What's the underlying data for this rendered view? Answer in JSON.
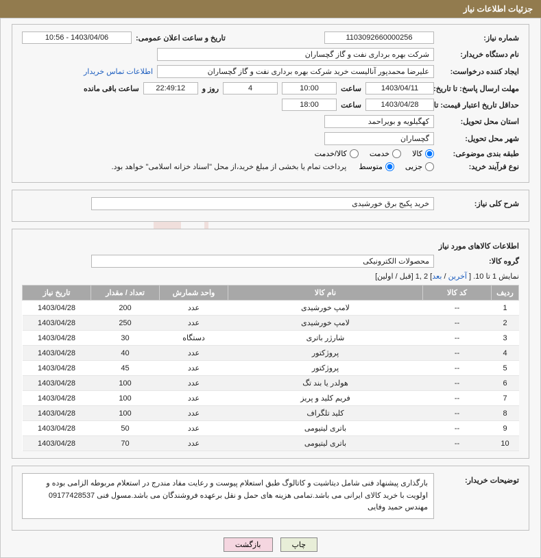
{
  "header": {
    "title": "جزئیات اطلاعات نیاز"
  },
  "watermark": {
    "text": "AriaTender.net"
  },
  "info": {
    "need_no_label": "شماره نیاز:",
    "need_no": "1103092660000256",
    "announce_label": "تاریخ و ساعت اعلان عمومی:",
    "announce": "1403/04/06 - 10:56",
    "buyer_org_label": "نام دستگاه خریدار:",
    "buyer_org": "شرکت بهره برداری نفت و گاز گچساران",
    "requester_label": "ایجاد کننده درخواست:",
    "requester": "علیرضا محمدپور آنالیست خرید شرکت بهره برداری نفت و گاز گچساران",
    "contact_link": "اطلاعات تماس خریدار",
    "deadline_label": "مهلت ارسال پاسخ: تا تاریخ:",
    "deadline_date": "1403/04/11",
    "time_label": "ساعت",
    "deadline_time": "10:00",
    "days_remaining": "4",
    "days_word": "روز و",
    "countdown": "22:49:12",
    "remaining_word": "ساعت باقی مانده",
    "validity_label": "حداقل تاریخ اعتبار قیمت: تا تاریخ:",
    "validity_date": "1403/04/28",
    "validity_time": "18:00",
    "province_label": "استان محل تحویل:",
    "province": "کهگیلویه و بویراحمد",
    "city_label": "شهر محل تحویل:",
    "city": "گچساران",
    "category_label": "طبقه بندی موضوعی:",
    "cat_goods": "کالا",
    "cat_service": "خدمت",
    "cat_both": "کالا/خدمت",
    "process_label": "نوع فرآیند خرید:",
    "proc_partial": "جزیی",
    "proc_medium": "متوسط",
    "payment_note": "پرداخت تمام یا بخشی از مبلغ خرید،از محل \"اسناد خزانه اسلامی\" خواهد بود."
  },
  "summary": {
    "title_label": "شرح کلی نیاز:",
    "title": "خرید پکیج برق خورشیدی"
  },
  "items": {
    "section_title": "اطلاعات کالاهای مورد نیاز",
    "group_label": "گروه کالا:",
    "group": "محصولات الکترونیکی",
    "pager_text": "نمایش 1 تا 10. [ ",
    "pager_last": "آخرین",
    "pager_sep1": " / ",
    "pager_next": "بعد",
    "pager_mid": "] 2 ,1 ",
    "pager_prevfirst": "[قبل / اولین]",
    "columns": [
      "ردیف",
      "کد کالا",
      "نام کالا",
      "واحد شمارش",
      "تعداد / مقدار",
      "تاریخ نیاز"
    ],
    "col_widths": [
      "40px",
      "100px",
      "auto",
      "100px",
      "100px",
      "100px"
    ],
    "rows": [
      [
        "1",
        "--",
        "لامپ خورشیدی",
        "عدد",
        "200",
        "1403/04/28"
      ],
      [
        "2",
        "--",
        "لامپ خورشیدی",
        "عدد",
        "250",
        "1403/04/28"
      ],
      [
        "3",
        "--",
        "شارژر باتری",
        "دستگاه",
        "30",
        "1403/04/28"
      ],
      [
        "4",
        "--",
        "پروژکتور",
        "عدد",
        "40",
        "1403/04/28"
      ],
      [
        "5",
        "--",
        "پروژکتور",
        "عدد",
        "45",
        "1403/04/28"
      ],
      [
        "6",
        "--",
        "هولدر یا بند تگ",
        "عدد",
        "100",
        "1403/04/28"
      ],
      [
        "7",
        "--",
        "فریم کلید و پریز",
        "عدد",
        "100",
        "1403/04/28"
      ],
      [
        "8",
        "--",
        "کلید تلگراف",
        "عدد",
        "100",
        "1403/04/28"
      ],
      [
        "9",
        "--",
        "باتری لیتیومی",
        "عدد",
        "50",
        "1403/04/28"
      ],
      [
        "10",
        "--",
        "باتری لیتیومی",
        "عدد",
        "70",
        "1403/04/28"
      ]
    ]
  },
  "buyer_notes": {
    "label": "توضیحات خریدار:",
    "text": "بارگذاری پیشنهاد فنی شامل دیتاشیت و کاتالوگ طبق استعلام پیوست و رعایت مفاد مندرج در استعلام مربوطه الزامی بوده و اولویت با خرید کالای ایرانی می باشد.تمامی هزینه های حمل و نقل برعهده فروشندگان می باشد.مسول فنی 09177428537 مهندس حمید وفایی"
  },
  "buttons": {
    "print": "چاپ",
    "back": "بازگشت"
  },
  "colors": {
    "header_bg": "#927b4e",
    "th_bg": "#a8a8a8",
    "link": "#2060c0",
    "btn_print_bg": "#e8eed8",
    "btn_back_bg": "#f5d6e0"
  }
}
